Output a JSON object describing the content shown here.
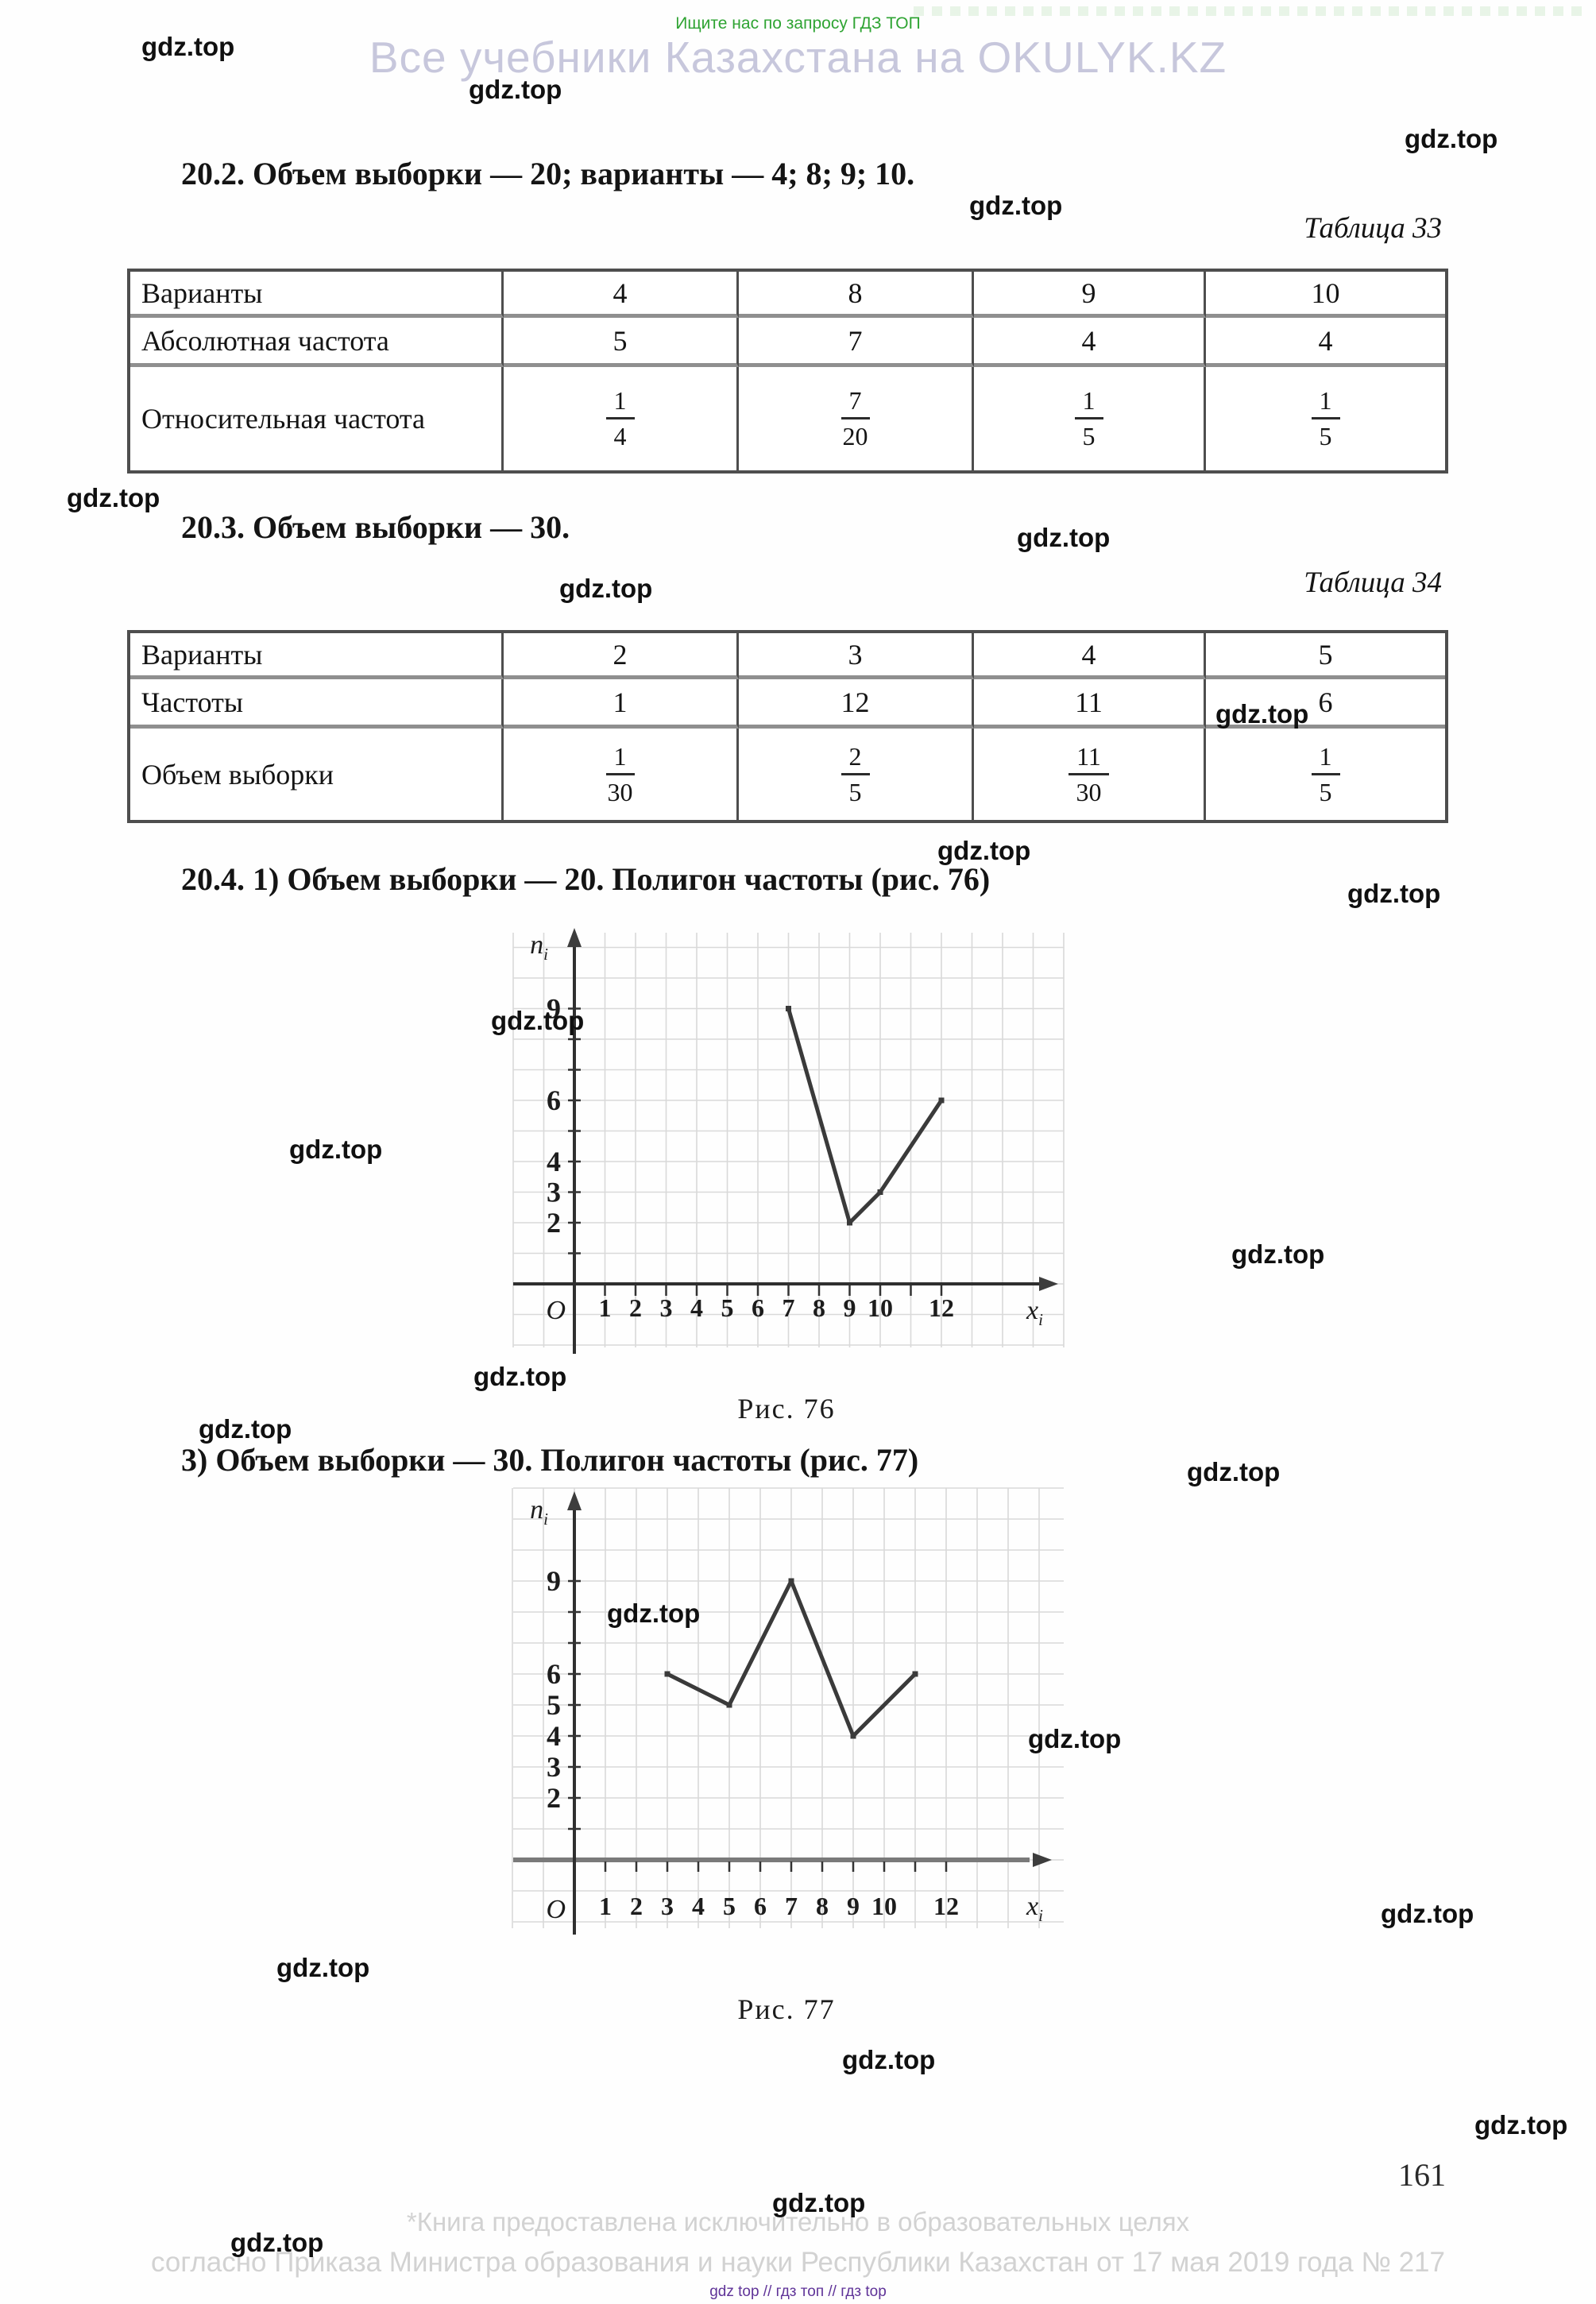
{
  "page": {
    "top_notice": "Ищите нас по запросу ГДЗ ТОП",
    "site_header": "Все учебники Казахстана на OKULYK.KZ",
    "page_number": "161",
    "footer_line1": "*Книга предоставлена исключительно в образовательных целях",
    "footer_line2": "согласно Приказа Министра образования и науки Республики Казахстан от 17 мая 2019 года № 217",
    "footer_tiny": "gdz top  //  гдз топ  //  гдз top"
  },
  "watermark": {
    "label": "gdz.top"
  },
  "problems": {
    "p202": "20.2. Объем выборки — 20; варианты — 4; 8; 9; 10.",
    "p203": "20.3. Объем выборки — 30.",
    "p204_1": "20.4. 1) Объем выборки — 20. Полигон частоты (рис. 76)",
    "p204_3": "3) Объем выборки — 30. Полигон частоты (рис. 77)"
  },
  "tables": [
    {
      "caption": "Таблица 33",
      "rows": [
        {
          "label": "Варианты",
          "cells": [
            "4",
            "8",
            "9",
            "10"
          ]
        },
        {
          "label": "Абсолютная частота",
          "cells": [
            "5",
            "7",
            "4",
            "4"
          ]
        },
        {
          "label": "Относительная частота",
          "cells": [
            {
              "num": "1",
              "den": "4"
            },
            {
              "num": "7",
              "den": "20"
            },
            {
              "num": "1",
              "den": "5"
            },
            {
              "num": "1",
              "den": "5"
            }
          ]
        }
      ]
    },
    {
      "caption": "Таблица 34",
      "rows": [
        {
          "label": "Варианты",
          "cells": [
            "2",
            "3",
            "4",
            "5"
          ]
        },
        {
          "label": "Частоты",
          "cells": [
            "1",
            "12",
            "11",
            "6"
          ]
        },
        {
          "label": "Объем выборки",
          "cells": [
            {
              "num": "1",
              "den": "30"
            },
            {
              "num": "2",
              "den": "5"
            },
            {
              "num": "11",
              "den": "30"
            },
            {
              "num": "1",
              "den": "5"
            }
          ]
        }
      ]
    }
  ],
  "chart_data": [
    {
      "type": "line",
      "figure": "Рис. 76",
      "title": "Полигон частоты, объем выборки 20",
      "x": [
        7,
        9,
        10,
        12
      ],
      "values": [
        9,
        2,
        3,
        6
      ],
      "xlabel": "x",
      "xlabel_sub": "i",
      "ylabel": "n",
      "ylabel_sub": "i",
      "origin_label": "O",
      "x_tick_values": [
        1,
        2,
        3,
        4,
        5,
        6,
        7,
        8,
        9,
        10,
        12
      ],
      "x_tick_labels": [
        "1",
        "2",
        "3",
        "4",
        "5",
        "6",
        "7",
        "8",
        "9",
        "10",
        "12"
      ],
      "y_label_values": [
        2,
        3,
        4,
        6,
        9
      ],
      "xlim": [
        0,
        13
      ],
      "ylim": [
        0,
        10
      ],
      "grid": "on",
      "legend": "none"
    },
    {
      "type": "line",
      "figure": "Рис. 77",
      "title": "Полигон частоты, объем выборки 30",
      "x": [
        3,
        5,
        7,
        9,
        11
      ],
      "values": [
        6,
        5,
        9,
        4,
        6
      ],
      "xlabel": "x",
      "xlabel_sub": "i",
      "ylabel": "n",
      "ylabel_sub": "i",
      "origin_label": "O",
      "x_tick_values": [
        1,
        2,
        3,
        4,
        5,
        6,
        7,
        8,
        9,
        10,
        12
      ],
      "x_tick_labels": [
        "1",
        "2",
        "3",
        "4",
        "5",
        "6",
        "7",
        "8",
        "9",
        "10",
        "12"
      ],
      "y_label_values": [
        2,
        3,
        4,
        5,
        6,
        9
      ],
      "xlim": [
        0,
        13
      ],
      "ylim": [
        0,
        10
      ],
      "grid": "on",
      "legend": "none"
    }
  ]
}
